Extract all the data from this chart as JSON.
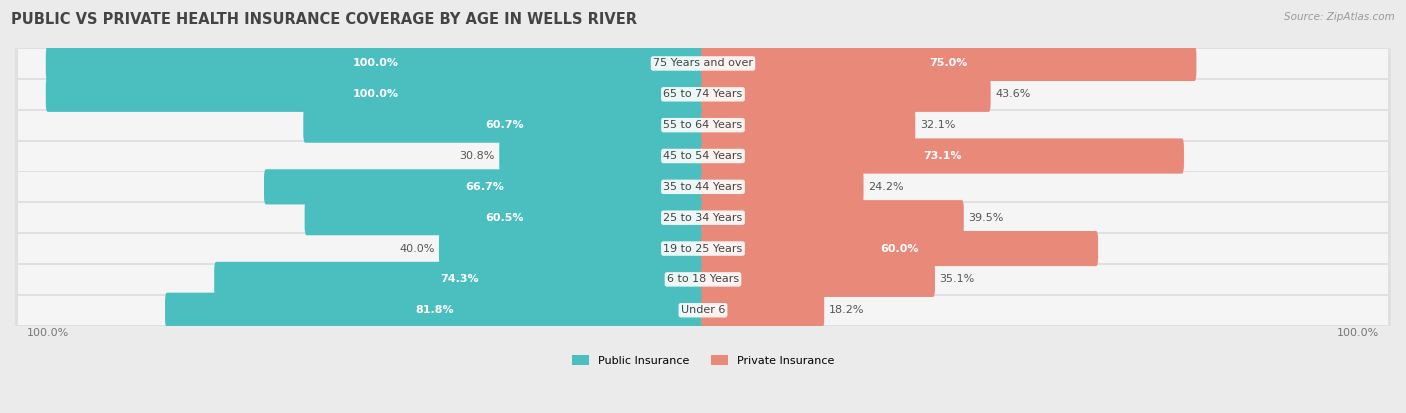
{
  "title": "PUBLIC VS PRIVATE HEALTH INSURANCE COVERAGE BY AGE IN WELLS RIVER",
  "source": "Source: ZipAtlas.com",
  "categories": [
    "Under 6",
    "6 to 18 Years",
    "19 to 25 Years",
    "25 to 34 Years",
    "35 to 44 Years",
    "45 to 54 Years",
    "55 to 64 Years",
    "65 to 74 Years",
    "75 Years and over"
  ],
  "public_values": [
    81.8,
    74.3,
    40.0,
    60.5,
    66.7,
    30.8,
    60.7,
    100.0,
    100.0
  ],
  "private_values": [
    18.2,
    35.1,
    60.0,
    39.5,
    24.2,
    73.1,
    32.1,
    43.6,
    75.0
  ],
  "public_color": "#4BBFBF",
  "private_color": "#E8897A",
  "background_color": "#ebebeb",
  "row_light_color": "#f5f5f5",
  "row_dark_color": "#e0e0e0",
  "bar_height": 0.54,
  "max_value": 100.0,
  "title_fontsize": 10.5,
  "label_fontsize": 8,
  "category_fontsize": 8,
  "legend_fontsize": 8,
  "source_fontsize": 7.5
}
